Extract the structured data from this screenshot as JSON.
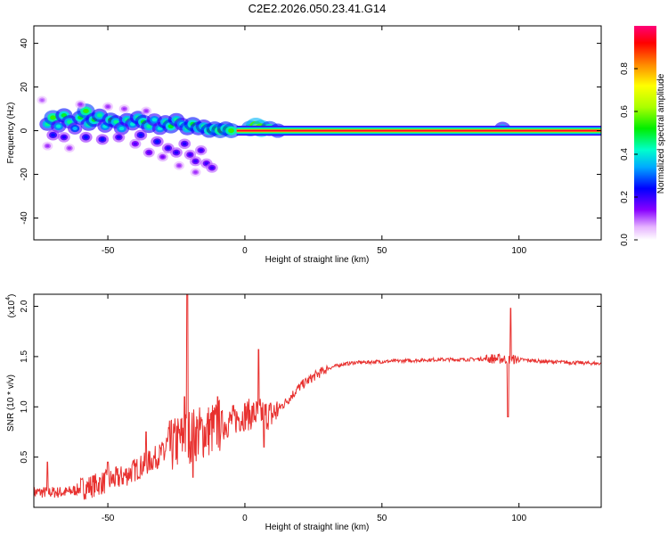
{
  "title": "C2E2.2026.050.23.41.G14",
  "chart_data": [
    {
      "type": "heatmap",
      "xlabel": "Height of straight line (km)",
      "ylabel": "Frequency (Hz)",
      "xlim": [
        -77,
        130
      ],
      "ylim": [
        -50,
        48
      ],
      "xticks": [
        -50,
        0,
        50,
        100
      ],
      "yticks": [
        40,
        20,
        0,
        -20,
        -40
      ],
      "colorbar": {
        "label": "Normalized spectral amplitude",
        "ticks": [
          0.0,
          0.2,
          0.4,
          0.6,
          0.8
        ],
        "range": [
          0,
          1
        ]
      },
      "ridge_line": {
        "x_start": -3,
        "x_end": 130,
        "frequency": 0,
        "amplitude": 0.95
      },
      "blobs": [
        {
          "x": -72,
          "y": 3,
          "a": 0.45
        },
        {
          "x": -70,
          "y": 6,
          "a": 0.55
        },
        {
          "x": -68,
          "y": 2,
          "a": 0.4
        },
        {
          "x": -66,
          "y": 7,
          "a": 0.5
        },
        {
          "x": -64,
          "y": 4,
          "a": 0.45
        },
        {
          "x": -62,
          "y": 1,
          "a": 0.35
        },
        {
          "x": -60,
          "y": 6,
          "a": 0.5
        },
        {
          "x": -58,
          "y": 9,
          "a": 0.55
        },
        {
          "x": -57,
          "y": 3,
          "a": 0.45
        },
        {
          "x": -55,
          "y": 5,
          "a": 0.5
        },
        {
          "x": -53,
          "y": 7,
          "a": 0.45
        },
        {
          "x": -51,
          "y": 2,
          "a": 0.4
        },
        {
          "x": -49,
          "y": 5,
          "a": 0.5
        },
        {
          "x": -47,
          "y": 4,
          "a": 0.45
        },
        {
          "x": -45,
          "y": 1,
          "a": 0.4
        },
        {
          "x": -43,
          "y": 5,
          "a": 0.45
        },
        {
          "x": -41,
          "y": 3,
          "a": 0.4
        },
        {
          "x": -39,
          "y": 6,
          "a": 0.45
        },
        {
          "x": -37,
          "y": 4,
          "a": 0.5
        },
        {
          "x": -35,
          "y": 2,
          "a": 0.45
        },
        {
          "x": -33,
          "y": 5,
          "a": 0.4
        },
        {
          "x": -31,
          "y": 1,
          "a": 0.4
        },
        {
          "x": -29,
          "y": 4,
          "a": 0.45
        },
        {
          "x": -27,
          "y": 2,
          "a": 0.5
        },
        {
          "x": -25,
          "y": 5,
          "a": 0.45
        },
        {
          "x": -23,
          "y": 3,
          "a": 0.4
        },
        {
          "x": -21,
          "y": 1,
          "a": 0.45
        },
        {
          "x": -19,
          "y": 3,
          "a": 0.5
        },
        {
          "x": -17,
          "y": 1,
          "a": 0.45
        },
        {
          "x": -15,
          "y": 2,
          "a": 0.45
        },
        {
          "x": -13,
          "y": 0,
          "a": 0.5
        },
        {
          "x": -11,
          "y": 1,
          "a": 0.5
        },
        {
          "x": -9,
          "y": 0,
          "a": 0.55
        },
        {
          "x": -7,
          "y": 1,
          "a": 0.5
        },
        {
          "x": -5,
          "y": 0,
          "a": 0.55
        },
        {
          "x": 2,
          "y": 1,
          "a": 0.6
        },
        {
          "x": 4,
          "y": 2,
          "a": 0.7
        },
        {
          "x": 6,
          "y": 1,
          "a": 0.7
        },
        {
          "x": 9,
          "y": 1,
          "a": 0.55
        },
        {
          "x": 12,
          "y": 0,
          "a": 0.5
        },
        {
          "x": 94,
          "y": 1,
          "a": 0.45
        },
        {
          "x": -70,
          "y": -2,
          "a": 0.25
        },
        {
          "x": -66,
          "y": -3,
          "a": 0.22
        },
        {
          "x": -58,
          "y": -3,
          "a": 0.25
        },
        {
          "x": -52,
          "y": -4,
          "a": 0.25
        },
        {
          "x": -46,
          "y": -3,
          "a": 0.22
        },
        {
          "x": -38,
          "y": -2,
          "a": 0.25
        },
        {
          "x": -32,
          "y": -5,
          "a": 0.25
        },
        {
          "x": -28,
          "y": -8,
          "a": 0.22
        },
        {
          "x": -25,
          "y": -10,
          "a": 0.22
        },
        {
          "x": -22,
          "y": -6,
          "a": 0.22
        },
        {
          "x": -20,
          "y": -11,
          "a": 0.2
        },
        {
          "x": -18,
          "y": -14,
          "a": 0.2
        },
        {
          "x": -16,
          "y": -9,
          "a": 0.2
        },
        {
          "x": -14,
          "y": -15,
          "a": 0.2
        },
        {
          "x": -12,
          "y": -17,
          "a": 0.2
        },
        {
          "x": -40,
          "y": -6,
          "a": 0.18
        },
        {
          "x": -35,
          "y": -10,
          "a": 0.18
        },
        {
          "x": -30,
          "y": -12,
          "a": 0.15
        },
        {
          "x": -24,
          "y": -16,
          "a": 0.12
        },
        {
          "x": -18,
          "y": -19,
          "a": 0.12
        },
        {
          "x": -64,
          "y": -8,
          "a": 0.12
        },
        {
          "x": -72,
          "y": -7,
          "a": 0.12
        },
        {
          "x": -60,
          "y": 12,
          "a": 0.12
        },
        {
          "x": -50,
          "y": 11,
          "a": 0.12
        },
        {
          "x": -44,
          "y": 10,
          "a": 0.12
        },
        {
          "x": -74,
          "y": 14,
          "a": 0.1
        },
        {
          "x": -36,
          "y": 9,
          "a": 0.12
        }
      ]
    },
    {
      "type": "line",
      "xlabel": "Height of straight line (km)",
      "ylabel": "SNR (10 * v/v)",
      "y_multiplier_label": "(x10",
      "y_multiplier_exp": "4",
      "y_multiplier_close": ")",
      "xlim": [
        -77,
        130
      ],
      "ylim": [
        0,
        2.12
      ],
      "xticks": [
        -50,
        0,
        50,
        100
      ],
      "yticks": [
        0.5,
        1.0,
        1.5,
        2.0
      ],
      "ytick_labels": [
        "0.5",
        "1.0",
        "1.5",
        "2.0"
      ],
      "color": "#e8312f",
      "baseline_points": [
        {
          "x": -77,
          "y": 0.15
        },
        {
          "x": -65,
          "y": 0.15
        },
        {
          "x": -55,
          "y": 0.22
        },
        {
          "x": -45,
          "y": 0.3
        },
        {
          "x": -35,
          "y": 0.45
        },
        {
          "x": -28,
          "y": 0.58
        },
        {
          "x": -22,
          "y": 0.7
        },
        {
          "x": -15,
          "y": 0.75
        },
        {
          "x": -10,
          "y": 0.8
        },
        {
          "x": -5,
          "y": 0.86
        },
        {
          "x": 0,
          "y": 0.92
        },
        {
          "x": 5,
          "y": 0.93
        },
        {
          "x": 10,
          "y": 0.92
        },
        {
          "x": 15,
          "y": 1.05
        },
        {
          "x": 20,
          "y": 1.2
        },
        {
          "x": 25,
          "y": 1.3
        },
        {
          "x": 30,
          "y": 1.38
        },
        {
          "x": 35,
          "y": 1.42
        },
        {
          "x": 40,
          "y": 1.44
        },
        {
          "x": 50,
          "y": 1.45
        },
        {
          "x": 60,
          "y": 1.46
        },
        {
          "x": 70,
          "y": 1.47
        },
        {
          "x": 80,
          "y": 1.47
        },
        {
          "x": 90,
          "y": 1.48
        },
        {
          "x": 100,
          "y": 1.47
        },
        {
          "x": 110,
          "y": 1.45
        },
        {
          "x": 120,
          "y": 1.44
        },
        {
          "x": 130,
          "y": 1.43
        }
      ],
      "spikes": [
        {
          "x": -21,
          "y": 2.12
        },
        {
          "x": -22,
          "y": 1.1
        },
        {
          "x": -19,
          "y": 0.3
        },
        {
          "x": -10,
          "y": 1.1
        },
        {
          "x": 5,
          "y": 1.57
        },
        {
          "x": 7,
          "y": 0.6
        },
        {
          "x": 96,
          "y": 0.9
        },
        {
          "x": 97,
          "y": 1.98
        },
        {
          "x": -72,
          "y": 0.45
        },
        {
          "x": -50,
          "y": 0.45
        },
        {
          "x": -36,
          "y": 0.75
        }
      ]
    }
  ]
}
